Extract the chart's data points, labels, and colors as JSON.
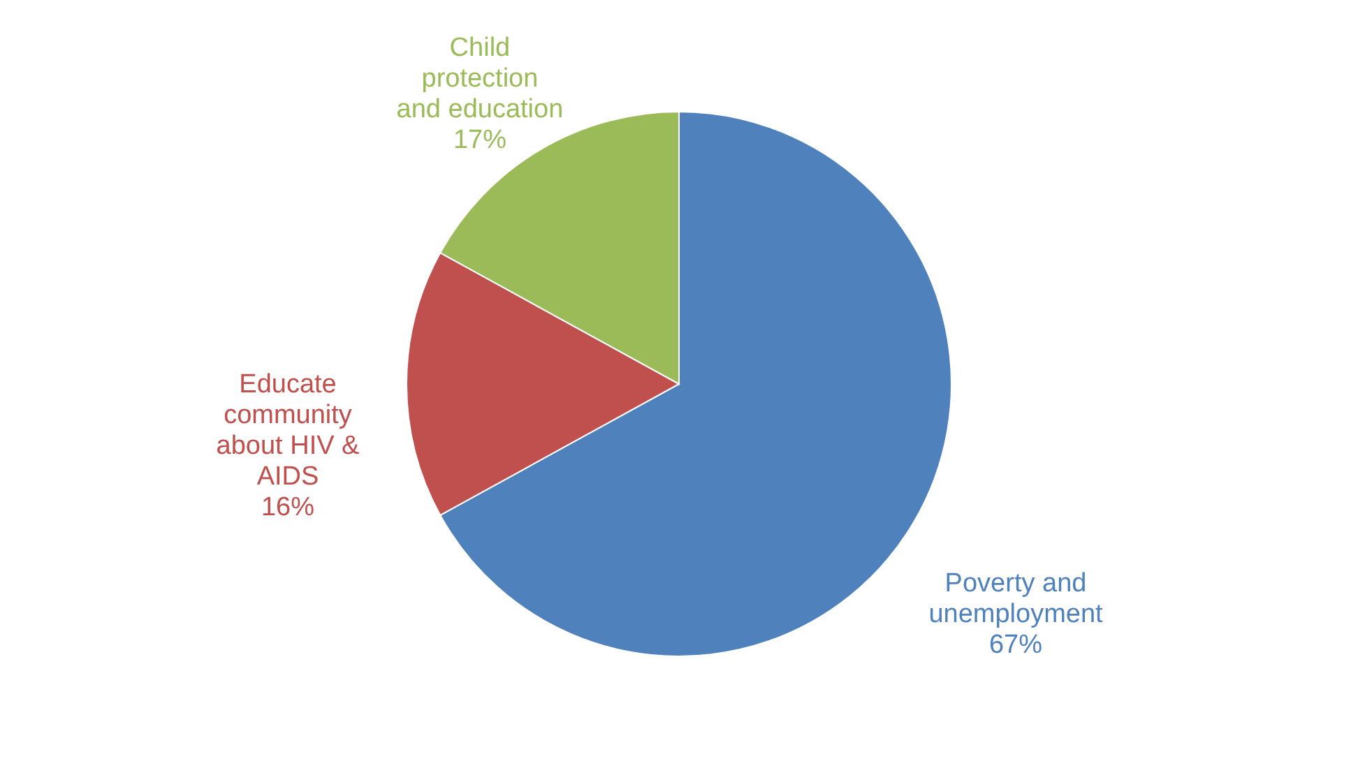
{
  "chart_data": {
    "type": "pie",
    "categories": [
      "Poverty and unemployment",
      "Educate community about HIV & AIDS",
      "Child protection and education"
    ],
    "values": [
      67,
      16,
      17
    ],
    "colors": [
      "#4f81bd",
      "#c0504d",
      "#9bbb59"
    ],
    "value_labels": [
      "67%",
      "16%",
      "17%"
    ],
    "legend": false
  }
}
